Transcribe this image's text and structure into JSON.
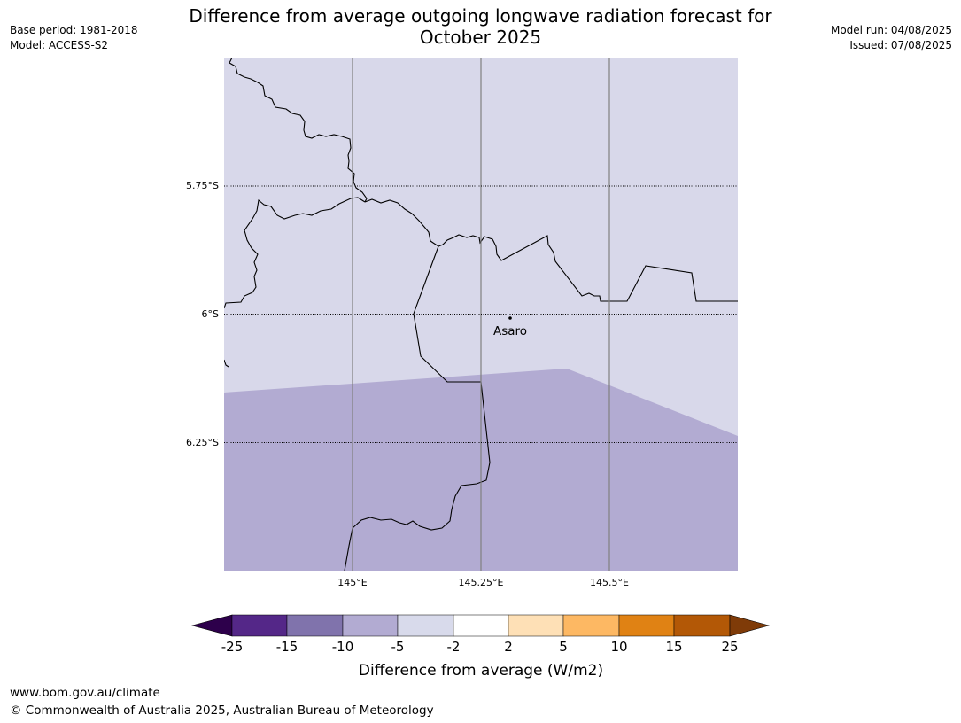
{
  "title_line1": "Difference from average outgoing longwave radiation forecast for",
  "title_line2": "October 2025",
  "meta_left": {
    "base_period": "Base period: 1981-2018",
    "model": "Model: ACCESS-S2"
  },
  "meta_right": {
    "model_run": "Model run: 04/08/2025",
    "issued": "Issued: 07/08/2025"
  },
  "map": {
    "lat_labels": [
      "5.75°S",
      "6°S",
      "6.25°S"
    ],
    "lon_labels": [
      "145°E",
      "145.25°E",
      "145.5°E"
    ],
    "place": {
      "name": "Asaro"
    },
    "colors": {
      "above_minus2": "#d8d8ea",
      "minus5_to_minus2": "#b2abd2"
    }
  },
  "legend": {
    "title": "Difference from average (W/m2)",
    "ticks": [
      "-25",
      "-15",
      "-10",
      "-5",
      "-2",
      "2",
      "5",
      "10",
      "15",
      "25"
    ],
    "colors": [
      "#2d004b",
      "#542788",
      "#8073ac",
      "#b2abd2",
      "#d8daeb",
      "#ffffff",
      "#fee0b6",
      "#fdb863",
      "#e08214",
      "#b35806",
      "#7f3b08"
    ]
  },
  "footer": {
    "url": "www.bom.gov.au/climate",
    "copyright": "© Commonwealth of Australia 2025, Australian Bureau of Meteorology"
  }
}
